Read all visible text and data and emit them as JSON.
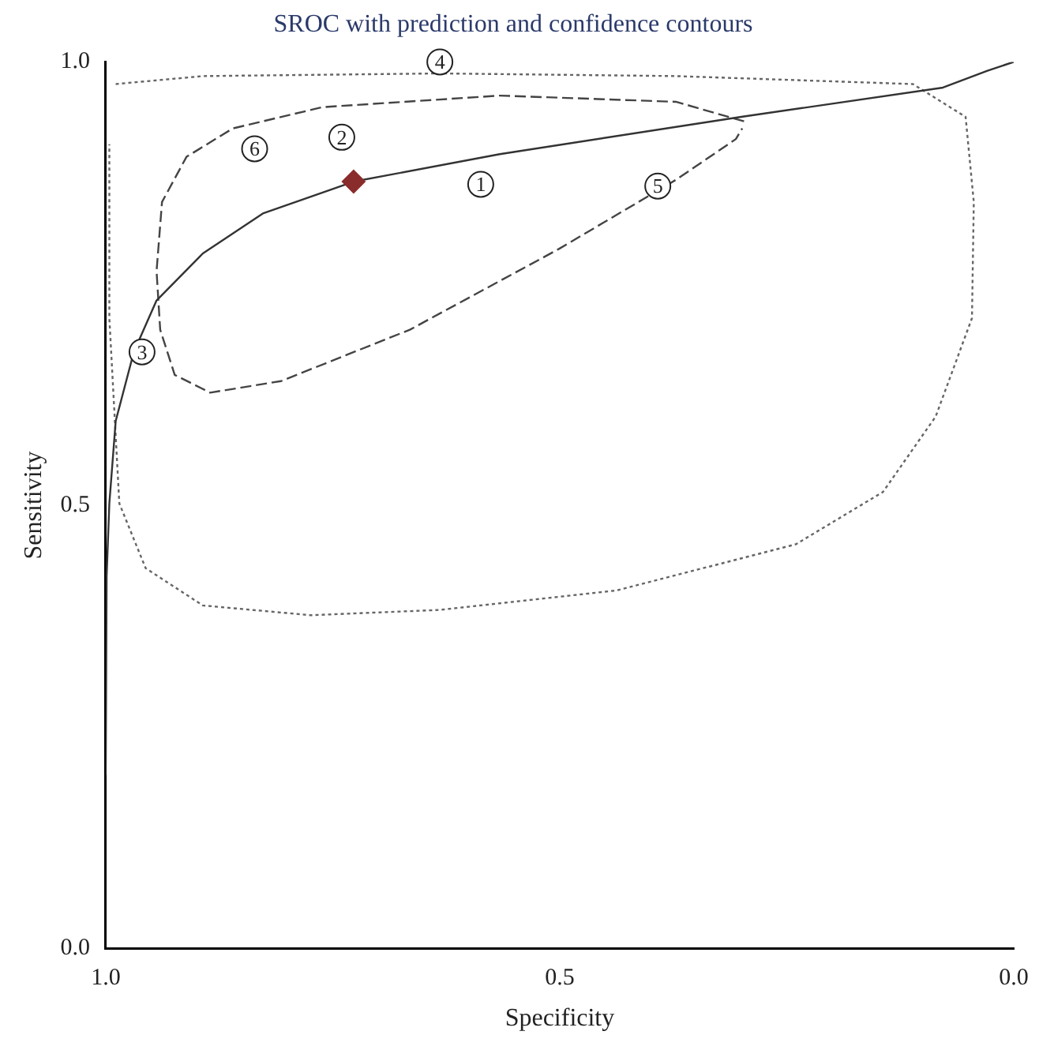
{
  "chart_data": {
    "type": "scatter",
    "title": "SROC with prediction and confidence contours",
    "xlabel": "Specificity",
    "ylabel": "Sensitivity",
    "xlim": [
      1,
      0
    ],
    "ylim": [
      0,
      1
    ],
    "xticks": [
      {
        "value": 1,
        "label": "1.0"
      },
      {
        "value": 0.5,
        "label": "0.5"
      },
      {
        "value": 0,
        "label": "0.0"
      }
    ],
    "yticks": [
      {
        "value": 0,
        "label": "0.0"
      },
      {
        "value": 0.5,
        "label": "0.5"
      },
      {
        "value": 1,
        "label": "1.0"
      }
    ],
    "grid": false,
    "legend": false,
    "annotations": [
      {
        "text": "1",
        "x": 0.587,
        "y": 0.862
      },
      {
        "text": "2",
        "x": 0.74,
        "y": 0.915
      },
      {
        "text": "3",
        "x": 0.96,
        "y": 0.673
      },
      {
        "text": "4",
        "x": 0.632,
        "y": 1.0
      },
      {
        "text": "5",
        "x": 0.392,
        "y": 0.86
      },
      {
        "text": "6",
        "x": 0.836,
        "y": 0.902
      }
    ],
    "series": [
      {
        "marker": "circle",
        "color": "#222222",
        "x": [
          0.587,
          0.74,
          0.96,
          0.632,
          0.392,
          0.836
        ],
        "values": [
          0.862,
          0.915,
          0.673,
          1.0,
          0.86,
          0.902
        ]
      },
      {
        "marker": "diamond",
        "color": "#8b2c2c",
        "x": [
          0.727
        ],
        "values": [
          0.865
        ]
      },
      {
        "type": "line",
        "line_style": "solid",
        "color": "#333333",
        "x": [
          1.0,
          0.999,
          0.996,
          0.989,
          0.969,
          0.944,
          0.893,
          0.827,
          0.727,
          0.566,
          0.3,
          0.078,
          0.029,
          0.0
        ],
        "values": [
          0.196,
          0.42,
          0.502,
          0.595,
          0.673,
          0.731,
          0.784,
          0.829,
          0.865,
          0.896,
          0.938,
          0.971,
          0.99,
          1.0
        ]
      },
      {
        "type": "line",
        "line_style": "dashed",
        "color": "#444444",
        "x": [
          0.297,
          0.372,
          0.566,
          0.761,
          0.86,
          0.911,
          0.938,
          0.944,
          0.94,
          0.924,
          0.885,
          0.807,
          0.665,
          0.501,
          0.372,
          0.306,
          0.299
        ],
        "values": [
          0.933,
          0.955,
          0.962,
          0.949,
          0.925,
          0.893,
          0.842,
          0.764,
          0.698,
          0.647,
          0.627,
          0.64,
          0.698,
          0.789,
          0.867,
          0.913,
          0.925
        ]
      },
      {
        "type": "line",
        "line_style": "dotted",
        "color": "#666666",
        "x": [
          0.989,
          0.893,
          0.632,
          0.372,
          0.111,
          0.053,
          0.044,
          0.046,
          0.086,
          0.144,
          0.24,
          0.437,
          0.632,
          0.774,
          0.893,
          0.956,
          0.985,
          0.996,
          0.996
        ],
        "values": [
          0.975,
          0.984,
          0.987,
          0.984,
          0.975,
          0.938,
          0.842,
          0.711,
          0.6,
          0.515,
          0.456,
          0.404,
          0.382,
          0.376,
          0.387,
          0.429,
          0.502,
          0.711,
          0.907
        ]
      }
    ]
  }
}
